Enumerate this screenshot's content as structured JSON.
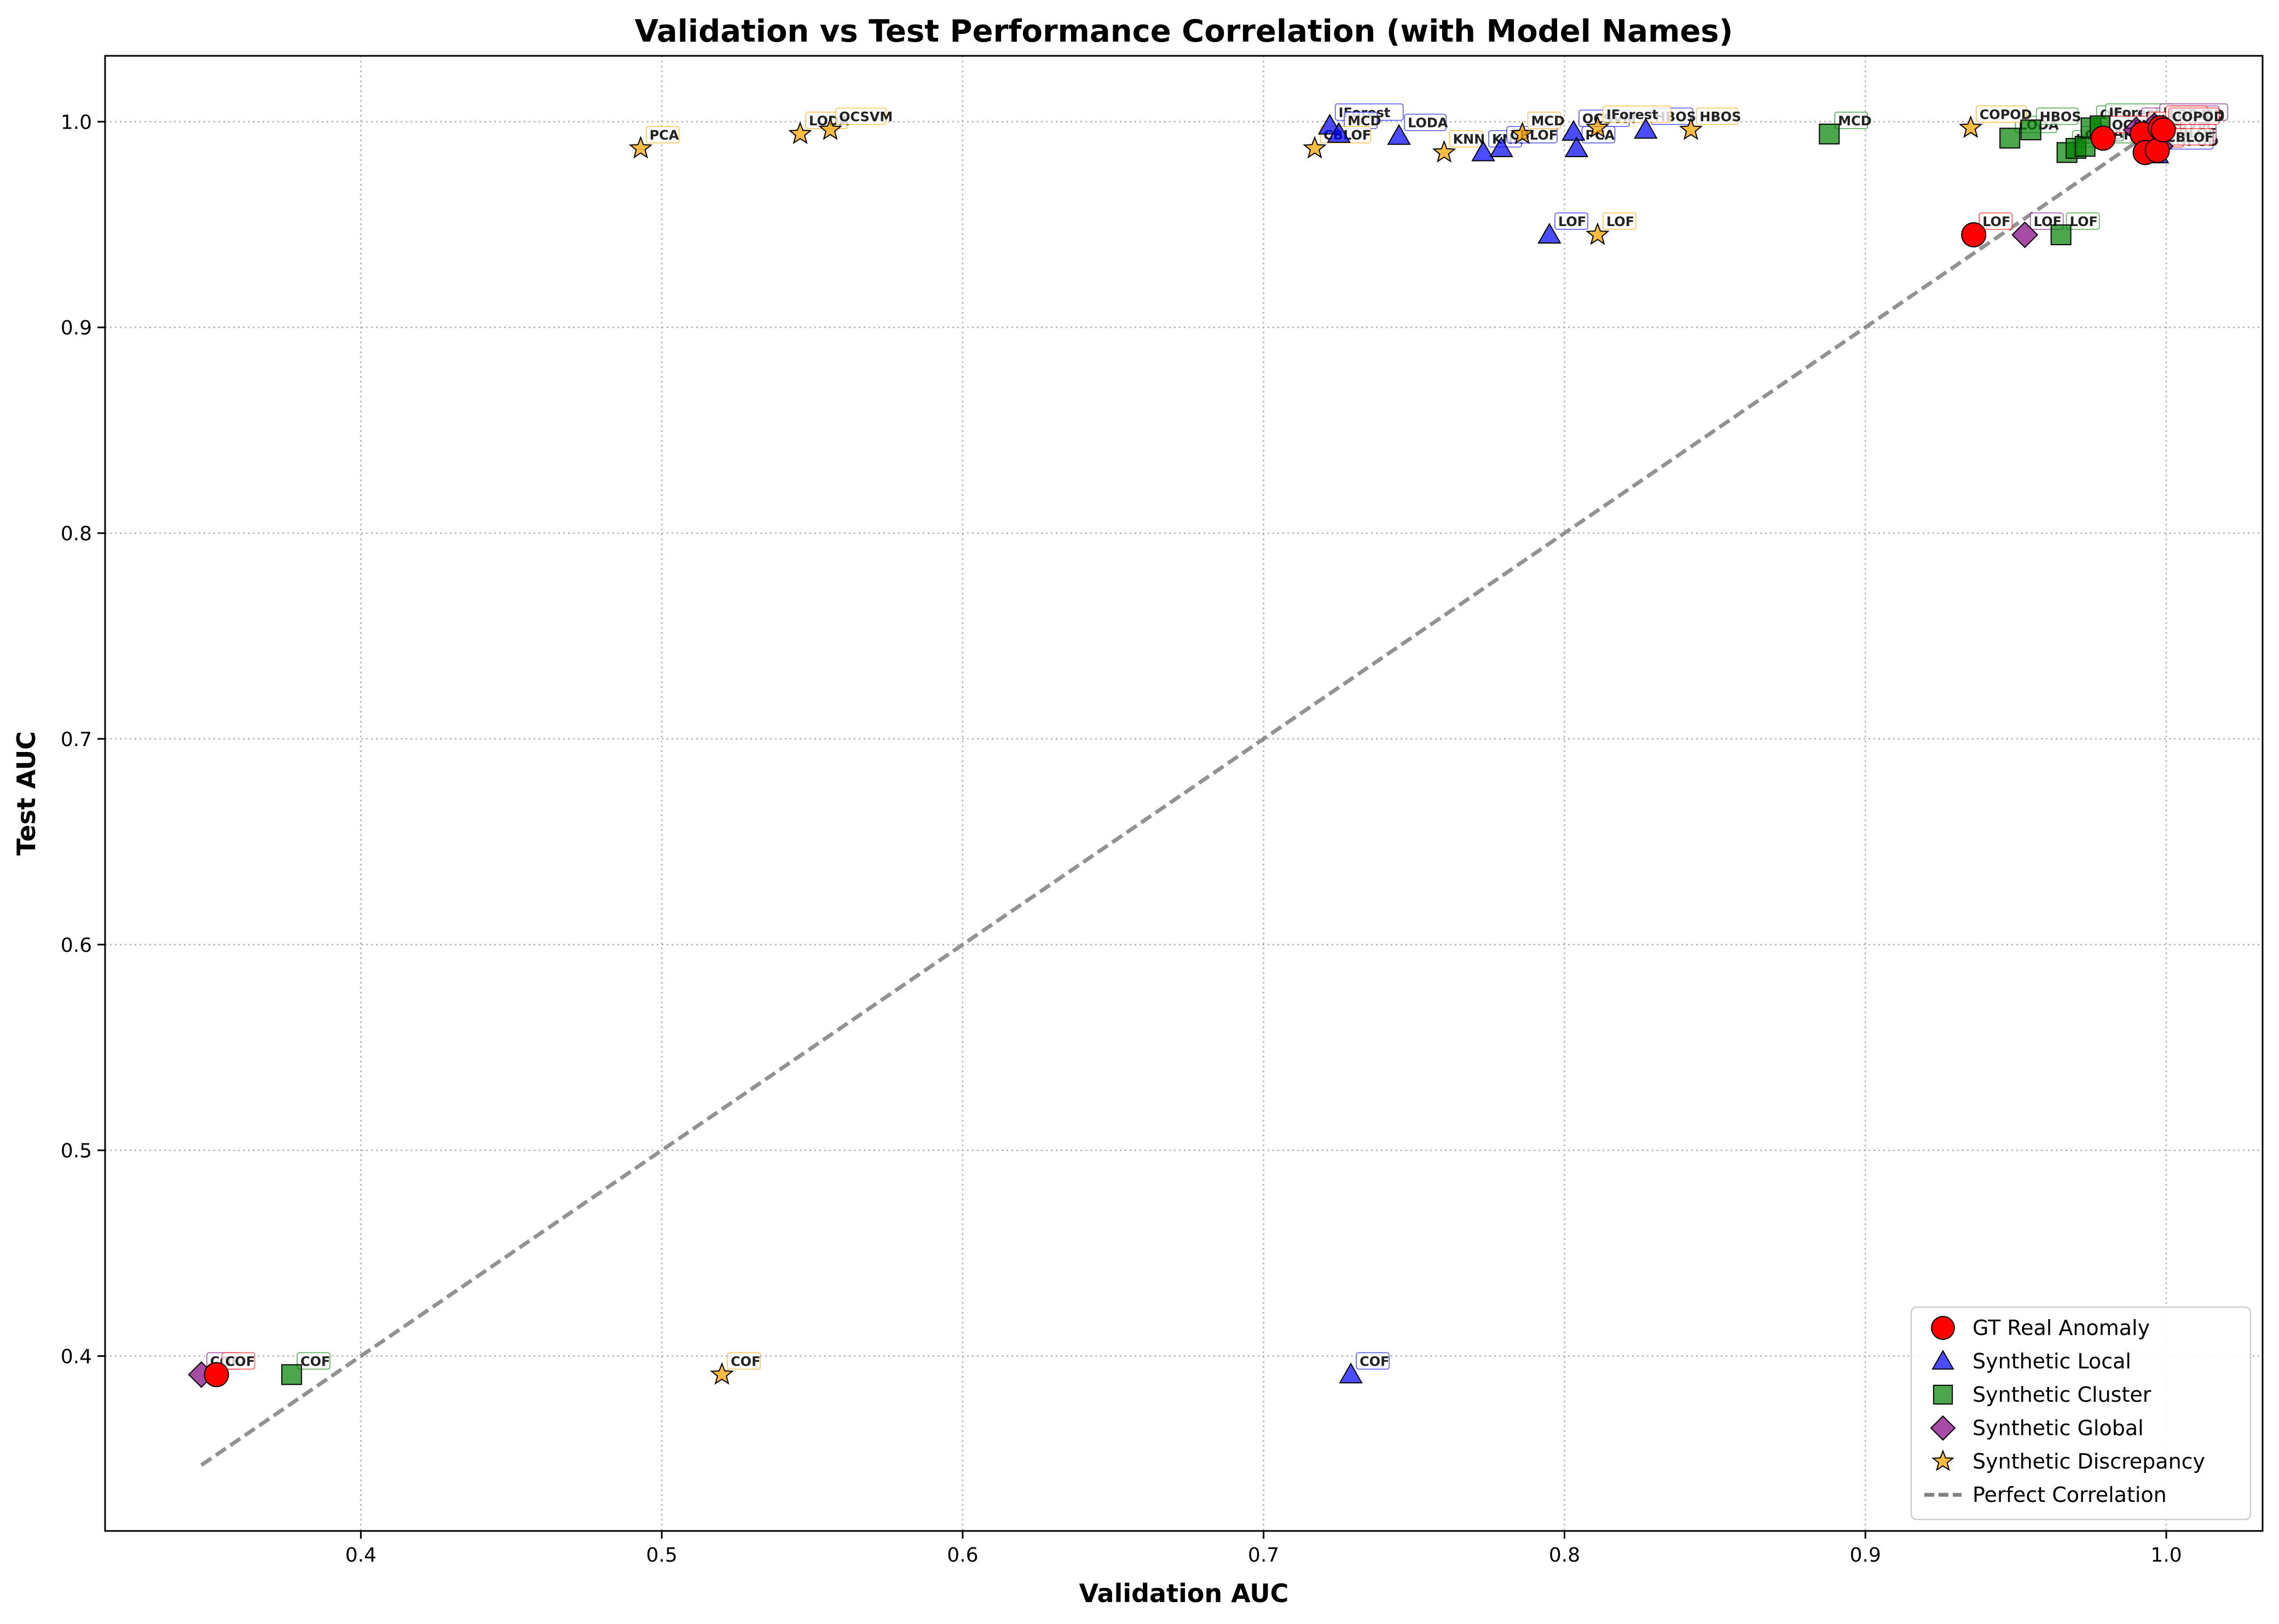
{
  "chart_data": {
    "type": "scatter",
    "title": "Validation vs Test Performance Correlation (with Model Names)",
    "xlabel": "Validation AUC",
    "ylabel": "Test AUC",
    "xlim": [
      0.315,
      1.032
    ],
    "ylim": [
      0.315,
      1.032
    ],
    "xticks": [
      0.4,
      0.5,
      0.6,
      0.7,
      0.8,
      0.9,
      1.0
    ],
    "yticks": [
      0.4,
      0.5,
      0.6,
      0.7,
      0.8,
      0.9,
      1.0
    ],
    "xtick_labels": [
      "0.4",
      "0.5",
      "0.6",
      "0.7",
      "0.8",
      "0.9",
      "1.0"
    ],
    "ytick_labels": [
      "0.4",
      "0.5",
      "0.6",
      "0.7",
      "0.8",
      "0.9",
      "1.0"
    ],
    "grid": true,
    "legend_position": "bottom-right",
    "reference_line": {
      "name": "Perfect Correlation",
      "from": [
        0.347,
        0.347
      ],
      "to": [
        1.0,
        1.0
      ],
      "color": "#808080",
      "style": "dashed"
    },
    "series": [
      {
        "name": "GT Real Anomaly",
        "marker": "circle",
        "color": "#ff0000",
        "points": [
          {
            "x": 0.352,
            "y": 0.391,
            "label": "COF"
          },
          {
            "x": 0.936,
            "y": 0.945,
            "label": "LOF"
          },
          {
            "x": 0.979,
            "y": 0.992,
            "label": "OCSVM"
          },
          {
            "x": 0.992,
            "y": 0.994,
            "label": "MCD"
          },
          {
            "x": 0.993,
            "y": 0.985,
            "label": "KNN"
          },
          {
            "x": 0.997,
            "y": 0.986,
            "label": "CBLOF"
          },
          {
            "x": 0.998,
            "y": 0.997,
            "label": "LODA"
          },
          {
            "x": 0.999,
            "y": 0.996,
            "label": "COPOD"
          }
        ]
      },
      {
        "name": "Synthetic Local",
        "marker": "triangle",
        "color": "#0000ff",
        "points": [
          {
            "x": 0.729,
            "y": 0.391,
            "label": "COF"
          },
          {
            "x": 0.795,
            "y": 0.945,
            "label": "LOF"
          },
          {
            "x": 0.722,
            "y": 0.998,
            "label": "IForest"
          },
          {
            "x": 0.725,
            "y": 0.994,
            "label": "MCD"
          },
          {
            "x": 0.745,
            "y": 0.993,
            "label": "LODA"
          },
          {
            "x": 0.773,
            "y": 0.985,
            "label": "KNN"
          },
          {
            "x": 0.779,
            "y": 0.987,
            "label": "CBLOF"
          },
          {
            "x": 0.803,
            "y": 0.995,
            "label": "OCSVM"
          },
          {
            "x": 0.804,
            "y": 0.987,
            "label": "PCA"
          },
          {
            "x": 0.827,
            "y": 0.996,
            "label": "HBOS"
          },
          {
            "x": 0.997,
            "y": 0.984,
            "label": "COPOD"
          }
        ]
      },
      {
        "name": "Synthetic Cluster",
        "marker": "square",
        "color": "#008000",
        "points": [
          {
            "x": 0.377,
            "y": 0.391,
            "label": "COF"
          },
          {
            "x": 0.965,
            "y": 0.945,
            "label": "LOF"
          },
          {
            "x": 0.888,
            "y": 0.994,
            "label": "MCD"
          },
          {
            "x": 0.948,
            "y": 0.992,
            "label": "LODA"
          },
          {
            "x": 0.955,
            "y": 0.996,
            "label": "HBOS"
          },
          {
            "x": 0.967,
            "y": 0.985,
            "label": "KNN"
          },
          {
            "x": 0.97,
            "y": 0.987,
            "label": "CBLOF"
          },
          {
            "x": 0.973,
            "y": 0.988,
            "label": "PCA"
          },
          {
            "x": 0.975,
            "y": 0.997,
            "label": "OCSVM"
          },
          {
            "x": 0.978,
            "y": 0.998,
            "label": "IForest"
          }
        ]
      },
      {
        "name": "Synthetic Global",
        "marker": "diamond",
        "color": "#800080",
        "points": [
          {
            "x": 0.347,
            "y": 0.391,
            "label": "COF"
          },
          {
            "x": 0.953,
            "y": 0.945,
            "label": "LOF"
          },
          {
            "x": 0.99,
            "y": 0.996,
            "label": "MCD"
          },
          {
            "x": 0.994,
            "y": 0.992,
            "label": "OCSVM"
          },
          {
            "x": 0.996,
            "y": 0.998,
            "label": "IForest"
          },
          {
            "x": 0.998,
            "y": 0.988,
            "label": "CBLOF"
          },
          {
            "x": 0.999,
            "y": 0.997,
            "label": "COPOD"
          }
        ]
      },
      {
        "name": "Synthetic Discrepancy",
        "marker": "star",
        "color": "#ffa500",
        "points": [
          {
            "x": 0.52,
            "y": 0.391,
            "label": "COF"
          },
          {
            "x": 0.811,
            "y": 0.945,
            "label": "LOF"
          },
          {
            "x": 0.493,
            "y": 0.987,
            "label": "PCA"
          },
          {
            "x": 0.546,
            "y": 0.994,
            "label": "LODA"
          },
          {
            "x": 0.556,
            "y": 0.996,
            "label": "OCSVM"
          },
          {
            "x": 0.717,
            "y": 0.987,
            "label": "CBLOF"
          },
          {
            "x": 0.76,
            "y": 0.985,
            "label": "KNN"
          },
          {
            "x": 0.786,
            "y": 0.994,
            "label": "MCD"
          },
          {
            "x": 0.811,
            "y": 0.997,
            "label": "IForest"
          },
          {
            "x": 0.842,
            "y": 0.996,
            "label": "HBOS"
          },
          {
            "x": 0.935,
            "y": 0.997,
            "label": "COPOD"
          }
        ]
      }
    ]
  }
}
